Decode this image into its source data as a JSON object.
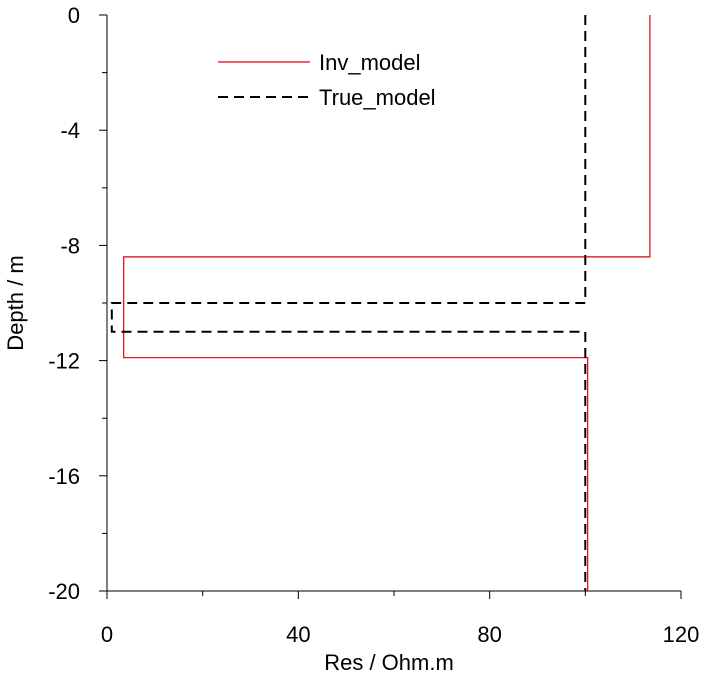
{
  "chart_data": {
    "type": "line",
    "xlabel": "Res / Ohm.m",
    "ylabel": "Depth / m",
    "xlim": [
      0,
      120
    ],
    "ylim": [
      -20,
      0
    ],
    "x_ticks": [
      0,
      40,
      80,
      120
    ],
    "x_tick_labels": [
      "0",
      "40",
      "80",
      "120"
    ],
    "y_ticks": [
      0,
      -4,
      -8,
      -12,
      -16,
      -20
    ],
    "y_tick_labels": [
      "0",
      "-4",
      "-8",
      "-12",
      "-16",
      "-20"
    ],
    "x_minor_step": 20,
    "y_minor_step": 2,
    "grid": false,
    "legend_position": "top-left",
    "series": [
      {
        "name": "Inv_model",
        "color": "#e0000b",
        "dash": "solid",
        "points": [
          [
            113.5,
            0
          ],
          [
            113.5,
            -8.4
          ],
          [
            3.5,
            -8.4
          ],
          [
            3.5,
            -11.9
          ],
          [
            100.5,
            -11.9
          ],
          [
            100.5,
            -20
          ]
        ]
      },
      {
        "name": "True_model",
        "color": "#000000",
        "dash": "dashed",
        "points": [
          [
            100,
            0
          ],
          [
            100,
            -10
          ],
          [
            1,
            -10
          ],
          [
            1,
            -11
          ],
          [
            100,
            -11
          ],
          [
            100,
            -20
          ]
        ]
      }
    ]
  }
}
